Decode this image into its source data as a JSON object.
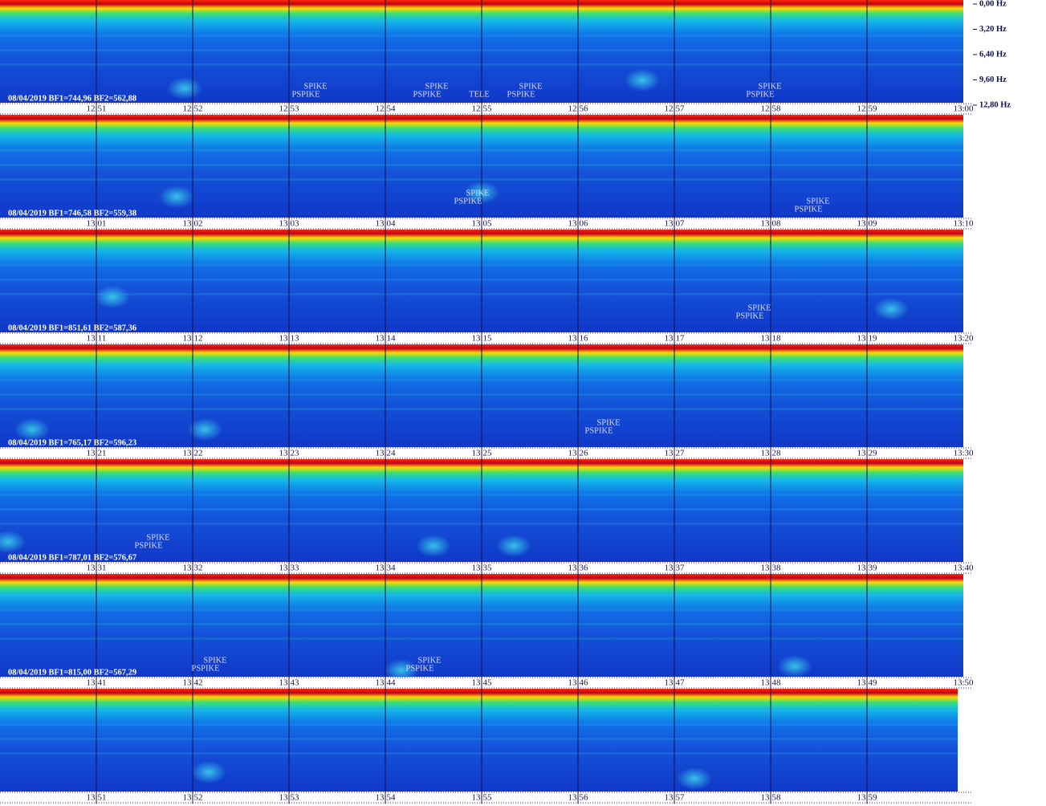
{
  "frequency_axis": [
    "0,00 Hz",
    "3,20 Hz",
    "6,40 Hz",
    "9,60 Hz",
    "12,80 Hz"
  ],
  "rows": [
    {
      "info": "08/04/2019 BF1=744,96 BF2=562,88",
      "times": [
        "12:51",
        "12:52",
        "12:53",
        "12:54",
        "12:55",
        "12:56",
        "12:57",
        "12:58",
        "12:59",
        "13:00"
      ],
      "annotations": [
        [
          "SPIKE",
          "PSPIKE"
        ],
        [
          "SPIKE",
          "PSPIKE"
        ],
        [
          "TELE"
        ],
        [
          "SPIKE",
          "PSPIKE"
        ],
        [
          "SPIKE",
          "PSPIKE"
        ]
      ]
    },
    {
      "info": "08/04/2019 BF1=746,58 BF2=559,38",
      "times": [
        "13:01",
        "13:02",
        "13:03",
        "13:04",
        "13:05",
        "13:06",
        "13:07",
        "13:08",
        "13:09",
        "13:10"
      ],
      "annotations": [
        [
          "SPIKE",
          "PSPIKE"
        ],
        [
          "SPIKE",
          "PSPIKE"
        ]
      ]
    },
    {
      "info": "08/04/2019 BF1=851,61 BF2=587,36",
      "times": [
        "13:11",
        "13:12",
        "13:13",
        "13:14",
        "13:15",
        "13:16",
        "13:17",
        "13:18",
        "13:19",
        "13:20"
      ],
      "annotations": [
        [
          "SPIKE",
          "PSPIKE"
        ]
      ]
    },
    {
      "info": "08/04/2019 BF1=765,17 BF2=596,23",
      "times": [
        "13:21",
        "13:22",
        "13:23",
        "13:24",
        "13:25",
        "13:26",
        "13:27",
        "13:28",
        "13:29",
        "13:30"
      ],
      "annotations": [
        [
          "SPIKE",
          "PSPIKE"
        ]
      ]
    },
    {
      "info": "08/04/2019 BF1=787,01 BF2=576,67",
      "times": [
        "13:31",
        "13:32",
        "13:33",
        "13:34",
        "13:35",
        "13:36",
        "13:37",
        "13:38",
        "13:39",
        "13:40"
      ],
      "annotations": [
        [
          "SPIKE",
          "PSPIKE"
        ]
      ]
    },
    {
      "info": "08/04/2019 BF1=815,00 BF2=567,29",
      "times": [
        "13:41",
        "13:42",
        "13:43",
        "13:44",
        "13:45",
        "13:46",
        "13:47",
        "13:48",
        "13:49",
        "13:50"
      ],
      "annotations": [
        [
          "SPIKE",
          "PSPIKE"
        ],
        [
          "SPIKE",
          "PSPIKE"
        ]
      ]
    },
    {
      "times": [
        "13:51",
        "13:52",
        "13:53",
        "13:54",
        "13:55",
        "13:56",
        "13:57",
        "13:58",
        "13:59"
      ]
    }
  ]
}
